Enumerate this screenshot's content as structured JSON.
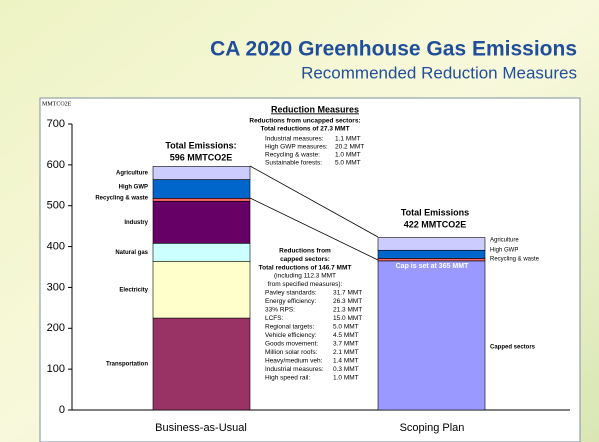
{
  "chart_data": {
    "type": "bar",
    "stacked": true,
    "title": "CA 2020 Greenhouse Gas Emissions",
    "subtitle": "Recommended Reduction Measures",
    "y_label": "MMTCO2E",
    "categories": [
      "Business-as-Usual",
      "Scoping Plan"
    ],
    "series": [
      {
        "name": "Capped sectors",
        "color": "#9999ff",
        "values": [
          null,
          365
        ]
      },
      {
        "name": "Transportation",
        "color": "#993366",
        "values": [
          225,
          null
        ]
      },
      {
        "name": "Electricity",
        "color": "#ffffcc",
        "values": [
          139,
          null
        ]
      },
      {
        "name": "Natural gas",
        "color": "#ccffff",
        "values": [
          44,
          null
        ]
      },
      {
        "name": "Industry",
        "color": "#660066",
        "values": [
          103,
          null
        ]
      },
      {
        "name": "Recycling & waste",
        "color": "#ff6666",
        "values": [
          7,
          6
        ]
      },
      {
        "name": "High GWP",
        "color": "#0066cc",
        "values": [
          46,
          20
        ]
      },
      {
        "name": "Agriculture",
        "color": "#ccccff",
        "values": [
          32,
          31
        ]
      }
    ],
    "ylim": [
      0,
      700
    ],
    "yticks": [
      0,
      100,
      200,
      300,
      400,
      500,
      600,
      700
    ],
    "annotations": [
      "Total Emissions:",
      "596 MMTCO2E",
      "Total Emissions",
      "422 MMTCO2E",
      "Cap is set at 365 MMT"
    ],
    "reduction_uncapped": {
      "title": "Reduction Measures",
      "lines": [
        "Reductions from uncapped sectors:",
        "Total reductions of 27.3 MMT"
      ],
      "items": [
        [
          "Industrial measures:",
          "1.1 MMT"
        ],
        [
          "High GWP measures:",
          "20.2 MMT"
        ],
        [
          "Recycling & waste:",
          "1.0 MMT"
        ],
        [
          "Sustainable forests:",
          "5.0 MMT"
        ]
      ]
    },
    "reduction_capped": {
      "lines": [
        "Reductions from",
        "capped sectors:",
        "Total reductions of 146.7 MMT",
        "(including 112.3 MMT",
        "from specified measures):"
      ],
      "items": [
        [
          "Pavley standards:",
          "31.7 MMT"
        ],
        [
          "Energy efficiency:",
          "26.3 MMT"
        ],
        [
          "33% RPS:",
          "21.3 MMT"
        ],
        [
          "LCFS:",
          "15.0 MMT"
        ],
        [
          "Regional targets:",
          "5.0 MMT"
        ],
        [
          "Vehicle efficiency:",
          "4.5 MMT"
        ],
        [
          "Goods movement:",
          "3.7 MMT"
        ],
        [
          "Million solar roofs:",
          "2.1 MMT"
        ],
        [
          "Heavy/medium veh:",
          "1.4 MMT"
        ],
        [
          "Industrial measures:",
          "0.3 MMT"
        ],
        [
          "High speed rail:",
          "1.0 MMT"
        ]
      ]
    }
  }
}
